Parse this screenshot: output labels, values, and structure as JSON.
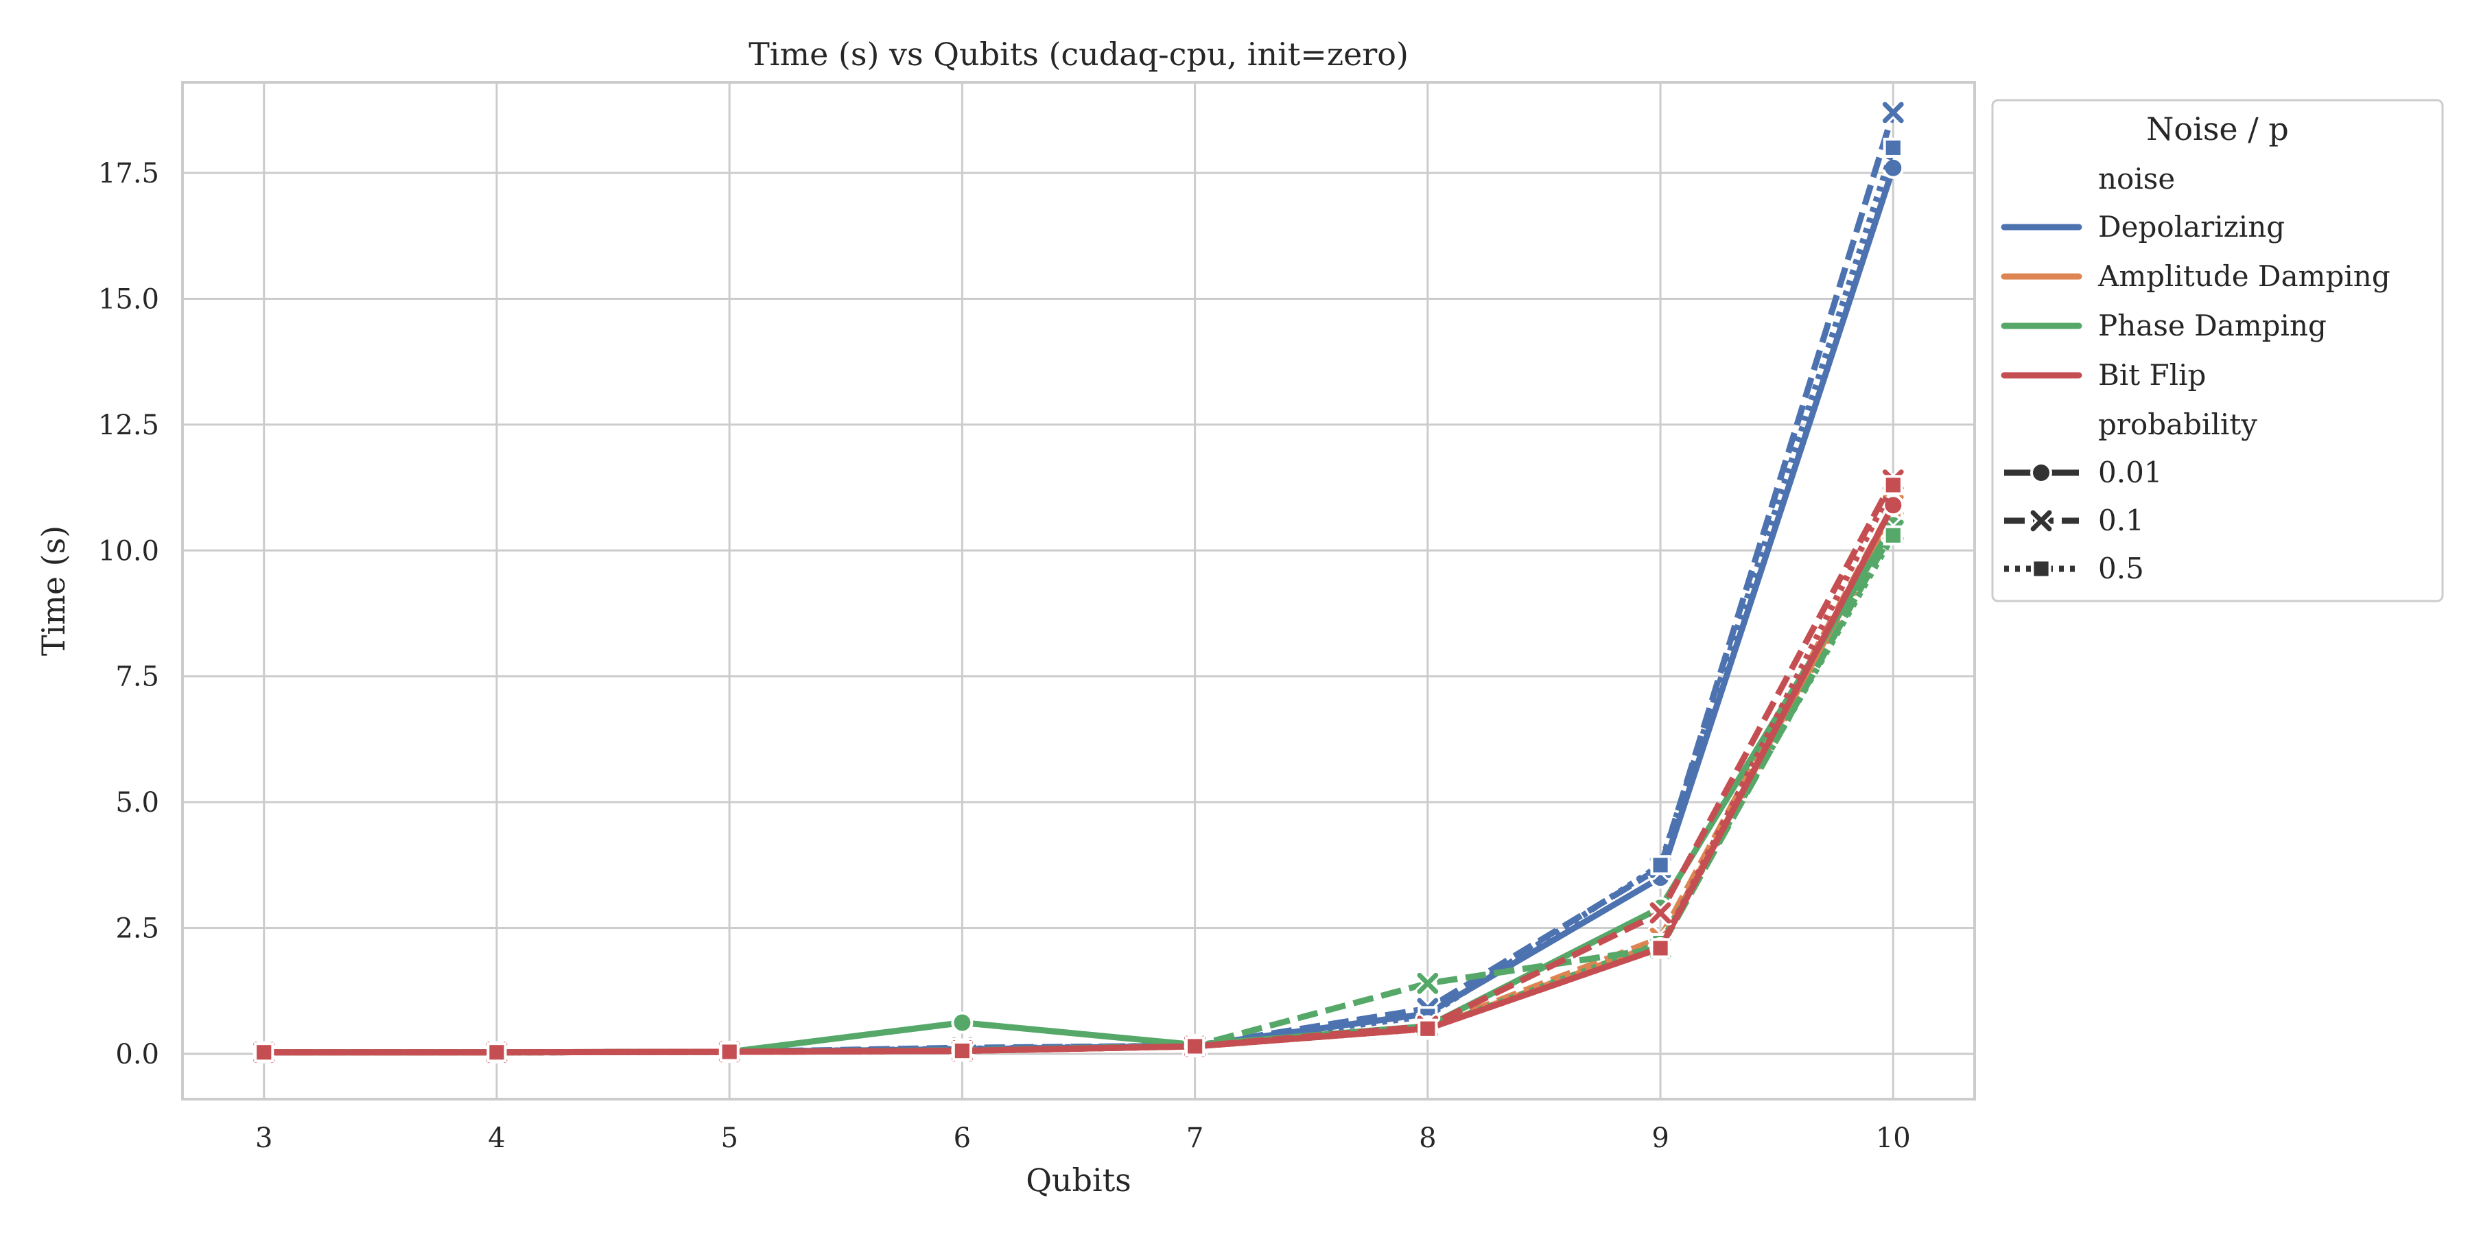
{
  "chart_data": {
    "type": "line",
    "title": "Time (s) vs Qubits (cudaq-cpu, init=zero)",
    "xlabel": "Qubits",
    "ylabel": "Time (s)",
    "x": [
      3,
      4,
      5,
      6,
      7,
      8,
      9,
      10
    ],
    "xlim": [
      2.65,
      10.35
    ],
    "ylim": [
      -0.9,
      19.3
    ],
    "yticks": [
      0.0,
      2.5,
      5.0,
      7.5,
      10.0,
      12.5,
      15.0,
      17.5
    ],
    "ytick_labels": [
      "0.0",
      "2.5",
      "5.0",
      "7.5",
      "10.0",
      "12.5",
      "15.0",
      "17.5"
    ],
    "xtick_labels": [
      "3",
      "4",
      "5",
      "6",
      "7",
      "8",
      "9",
      "10"
    ],
    "grid": true,
    "legend": {
      "title": "Noise / p",
      "placement": "outside-top-right",
      "noise_header": "noise",
      "probability_header": "probability",
      "noise_entries": [
        {
          "label": "Depolarizing",
          "color": "#4c72b0"
        },
        {
          "label": "Amplitude Damping",
          "color": "#dd8452"
        },
        {
          "label": "Phase Damping",
          "color": "#55a868"
        },
        {
          "label": "Bit Flip",
          "color": "#c44e52"
        }
      ],
      "probability_entries": [
        {
          "label": "0.01",
          "marker": "circle",
          "dash": "solid"
        },
        {
          "label": "0.1",
          "marker": "x",
          "dash": "dashed"
        },
        {
          "label": "0.5",
          "marker": "square",
          "dash": "dotted"
        }
      ]
    },
    "series": [
      {
        "noise": "Depolarizing",
        "p": "0.01",
        "color": "#4c72b0",
        "marker": "circle",
        "dash": "solid",
        "values": [
          0.03,
          0.03,
          0.04,
          0.09,
          0.16,
          0.8,
          3.5,
          17.6
        ]
      },
      {
        "noise": "Depolarizing",
        "p": "0.1",
        "color": "#4c72b0",
        "marker": "x",
        "dash": "dashed",
        "values": [
          0.03,
          0.03,
          0.04,
          0.12,
          0.16,
          0.9,
          3.7,
          18.7
        ]
      },
      {
        "noise": "Depolarizing",
        "p": "0.5",
        "color": "#4c72b0",
        "marker": "square",
        "dash": "dotted",
        "values": [
          0.03,
          0.03,
          0.04,
          0.1,
          0.17,
          0.75,
          3.75,
          18.0
        ]
      },
      {
        "noise": "Amplitude Damping",
        "p": "0.01",
        "color": "#dd8452",
        "marker": "circle",
        "dash": "solid",
        "values": [
          0.03,
          0.03,
          0.04,
          0.06,
          0.15,
          0.5,
          2.2,
          10.7
        ]
      },
      {
        "noise": "Amplitude Damping",
        "p": "0.1",
        "color": "#dd8452",
        "marker": "x",
        "dash": "dashed",
        "values": [
          0.03,
          0.03,
          0.04,
          0.06,
          0.15,
          0.52,
          2.3,
          10.9
        ]
      },
      {
        "noise": "Amplitude Damping",
        "p": "0.5",
        "color": "#dd8452",
        "marker": "square",
        "dash": "dotted",
        "values": [
          0.03,
          0.03,
          0.04,
          0.06,
          0.15,
          0.5,
          2.15,
          10.6
        ]
      },
      {
        "noise": "Phase Damping",
        "p": "0.01",
        "color": "#55a868",
        "marker": "circle",
        "dash": "solid",
        "values": [
          0.03,
          0.03,
          0.04,
          0.62,
          0.18,
          0.55,
          2.9,
          10.5
        ]
      },
      {
        "noise": "Phase Damping",
        "p": "0.1",
        "color": "#55a868",
        "marker": "x",
        "dash": "dashed",
        "values": [
          0.03,
          0.03,
          0.04,
          0.07,
          0.16,
          1.4,
          2.1,
          10.4
        ]
      },
      {
        "noise": "Phase Damping",
        "p": "0.5",
        "color": "#55a868",
        "marker": "square",
        "dash": "dotted",
        "values": [
          0.03,
          0.03,
          0.04,
          0.06,
          0.15,
          0.5,
          2.2,
          10.3
        ]
      },
      {
        "noise": "Bit Flip",
        "p": "0.01",
        "color": "#c44e52",
        "marker": "circle",
        "dash": "solid",
        "values": [
          0.03,
          0.03,
          0.04,
          0.06,
          0.15,
          0.5,
          2.1,
          10.9
        ]
      },
      {
        "noise": "Bit Flip",
        "p": "0.1",
        "color": "#c44e52",
        "marker": "x",
        "dash": "dashed",
        "values": [
          0.03,
          0.03,
          0.04,
          0.06,
          0.15,
          0.55,
          2.8,
          11.4
        ]
      },
      {
        "noise": "Bit Flip",
        "p": "0.5",
        "color": "#c44e52",
        "marker": "square",
        "dash": "dotted",
        "values": [
          0.03,
          0.03,
          0.04,
          0.06,
          0.15,
          0.5,
          2.1,
          11.3
        ]
      }
    ]
  }
}
